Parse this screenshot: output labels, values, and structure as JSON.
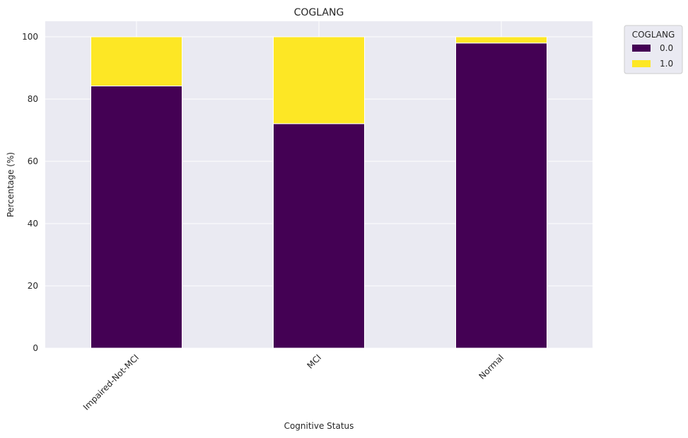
{
  "chart_data": {
    "type": "bar",
    "stacked": true,
    "title": "COGLANG",
    "xlabel": "Cognitive Status",
    "ylabel": "Percentage (%)",
    "categories": [
      "Impaired-Not-MCI",
      "MCI",
      "Normal"
    ],
    "series": [
      {
        "name": "0.0",
        "values": [
          84.2,
          72.1,
          98.0
        ],
        "color": "#440154"
      },
      {
        "name": "1.0",
        "values": [
          15.8,
          27.9,
          2.0
        ],
        "color": "#fde725"
      }
    ],
    "ylim": [
      0,
      105
    ],
    "yticks": [
      0,
      20,
      40,
      60,
      80,
      100
    ],
    "grid": true,
    "legend": {
      "title": "COGLANG",
      "placement": "outside-top-right"
    },
    "colors": {
      "plot_background": "#eaeaf2",
      "grid": "#ffffff"
    }
  }
}
